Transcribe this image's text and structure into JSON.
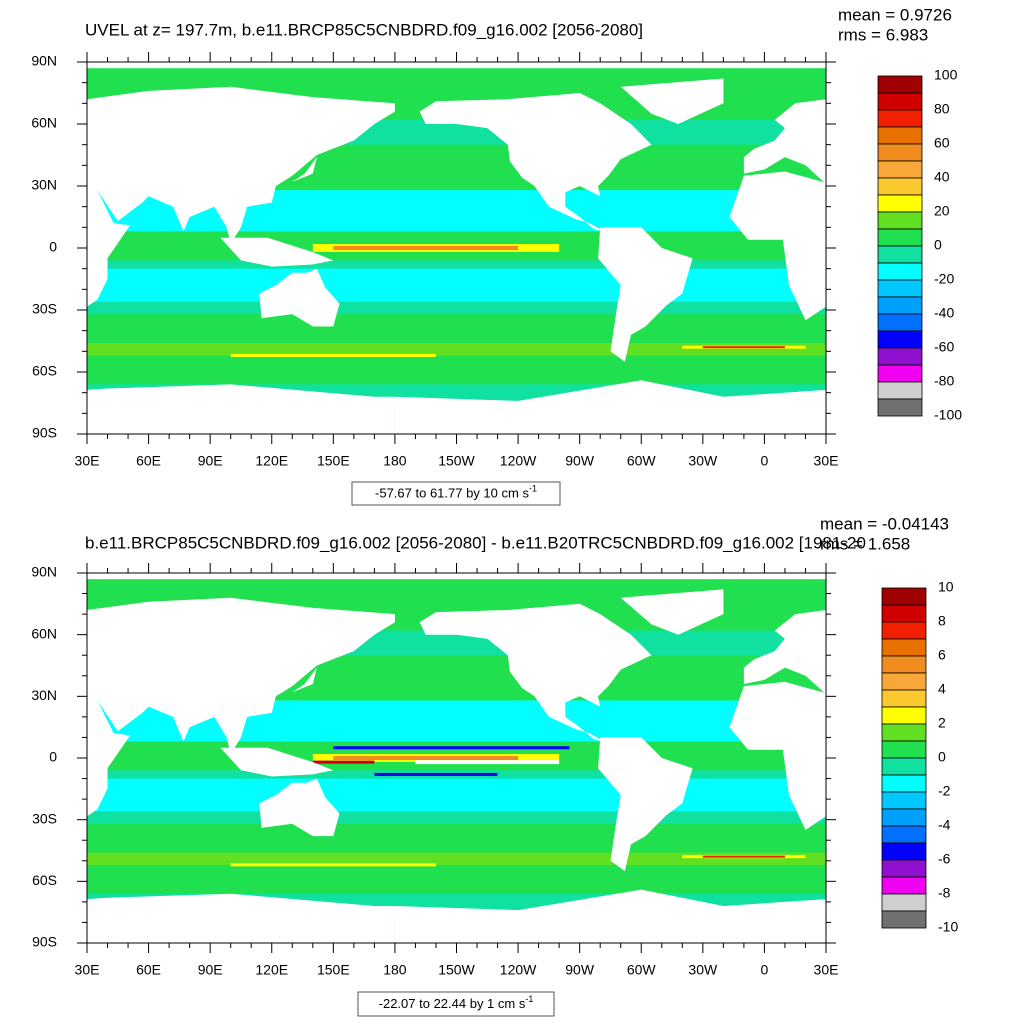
{
  "panels": [
    {
      "title": "UVEL at z= 197.7m, b.e11.BRCP85C5CNBDRD.f09_g16.002 [2056-2080]",
      "mean": "mean = 0.9726",
      "rms": "rms = 6.983",
      "x_tick_labels": [
        "30E",
        "60E",
        "90E",
        "120E",
        "150E",
        "180",
        "150W",
        "120W",
        "90W",
        "60W",
        "30W",
        "0",
        "30E"
      ],
      "y_tick_labels": [
        "90N",
        "60N",
        "30N",
        "0",
        "30S",
        "60S",
        "90S"
      ],
      "colorbar": {
        "levels": [
          100,
          80,
          60,
          40,
          20,
          0,
          -20,
          -40,
          -60,
          -80,
          -100
        ],
        "colors": [
          "#a00000",
          "#d00000",
          "#f02000",
          "#e87000",
          "#f08c20",
          "#f8a838",
          "#fcc830",
          "#ffff00",
          "#60e020",
          "#20e050",
          "#10e0a0",
          "#00ffff",
          "#00c8ff",
          "#00a0ff",
          "#0070ff",
          "#0000ff",
          "#9010d0",
          "#f000f0",
          "#d0d0d0",
          "#707070"
        ]
      },
      "range_label": "-57.67 to 61.77 by 10 cm s",
      "range_unit_exponent": "-1"
    },
    {
      "title": "b.e11.BRCP85C5CNBDRD.f09_g16.002 [2056-2080] - b.e11.B20TRC5CNBDRD.f09_g16.002 [1981-20",
      "mean": "mean = -0.04143",
      "rms": "rms = 1.658",
      "x_tick_labels": [
        "30E",
        "60E",
        "90E",
        "120E",
        "150E",
        "180",
        "150W",
        "120W",
        "90W",
        "60W",
        "30W",
        "0",
        "30E"
      ],
      "y_tick_labels": [
        "90N",
        "60N",
        "30N",
        "0",
        "30S",
        "60S",
        "90S"
      ],
      "colorbar": {
        "levels": [
          10,
          8,
          6,
          4,
          2,
          0,
          -2,
          -4,
          -6,
          -8,
          -10
        ],
        "colors": [
          "#a00000",
          "#d00000",
          "#f02000",
          "#e87000",
          "#f08c20",
          "#f8a838",
          "#fcc830",
          "#ffff00",
          "#60e020",
          "#20e050",
          "#10e0a0",
          "#00ffff",
          "#00c8ff",
          "#00a0ff",
          "#0070ff",
          "#0000ff",
          "#9010d0",
          "#f000f0",
          "#d0d0d0",
          "#707070"
        ]
      },
      "range_label": "-22.07 to 22.44 by 1 cm s",
      "range_unit_exponent": "-1"
    }
  ]
}
